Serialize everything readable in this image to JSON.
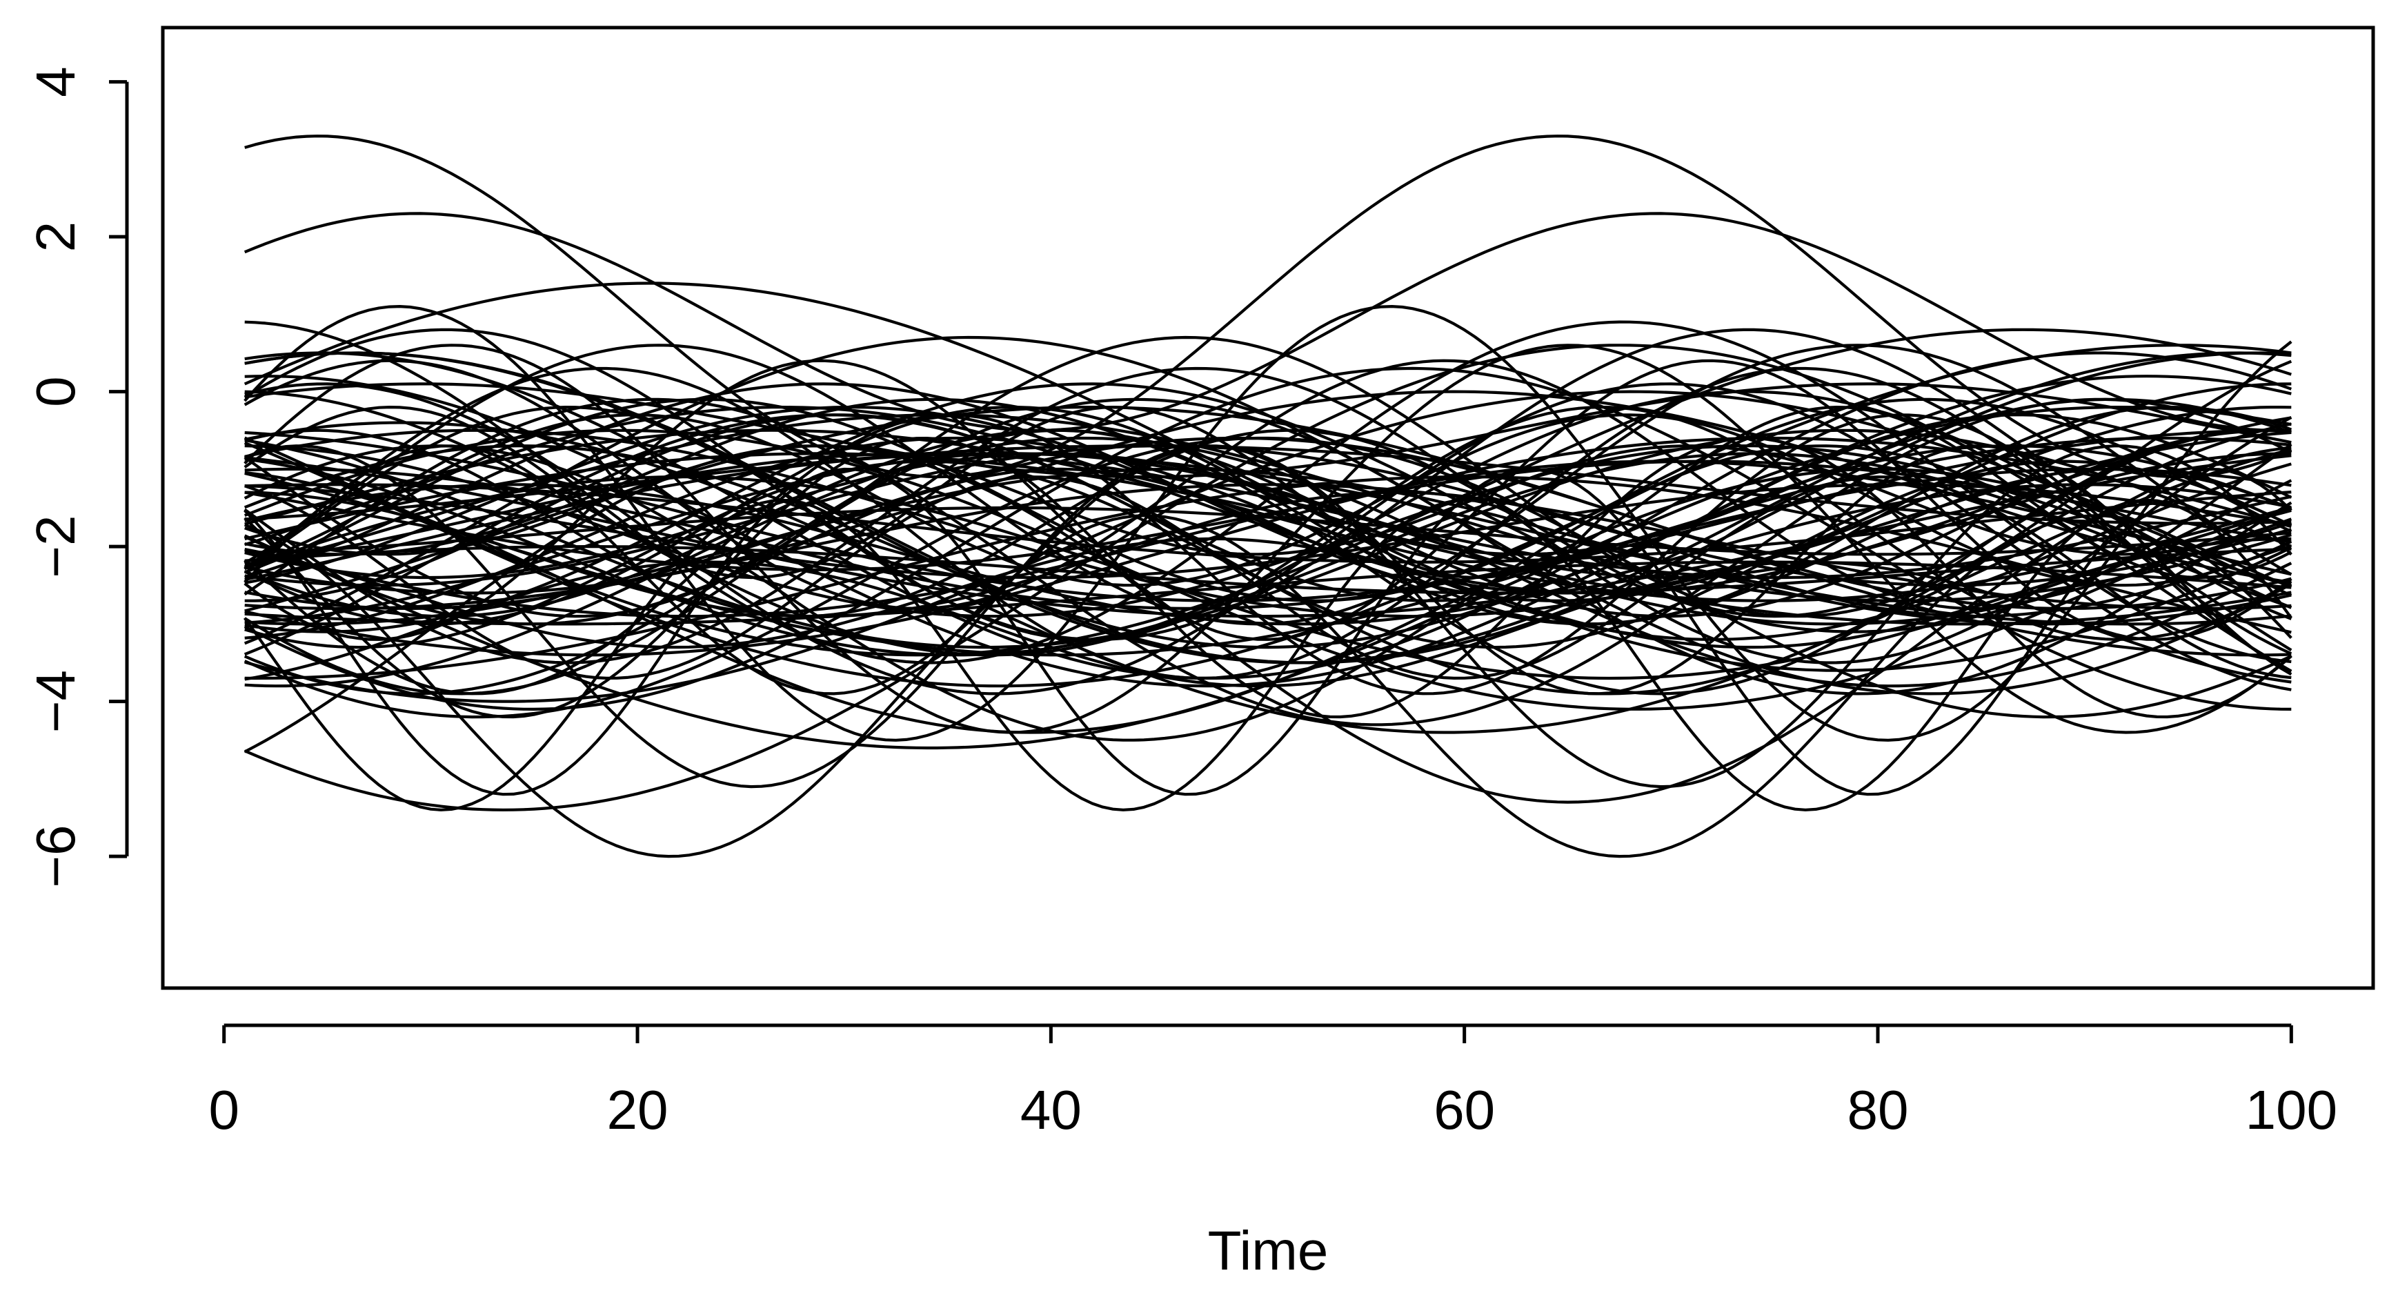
{
  "chart_data": {
    "type": "line",
    "title": "",
    "xlabel": "Time",
    "ylabel": "",
    "x_range": [
      1,
      100
    ],
    "xlim": [
      -2.96,
      103.96
    ],
    "ylim": [
      -7.7,
      4.7
    ],
    "x_ticks": [
      0,
      20,
      40,
      60,
      80,
      100
    ],
    "x_tick_labels": [
      "0",
      "20",
      "40",
      "60",
      "80",
      "100"
    ],
    "y_ticks": [
      -6,
      -4,
      -2,
      0,
      2,
      4
    ],
    "y_tick_labels": [
      "−6",
      "−4",
      "−2",
      "0",
      "2",
      "4"
    ],
    "grid": false,
    "legend": "none",
    "line_color": "#000000",
    "series_count": 100,
    "series_formula": "y(t) = offset + amplitude * sin(2*pi*(t - 1)/period + phase), t = 1..100",
    "series": [
      {
        "offset": -1.7,
        "amplitude": 2.8,
        "period": 48,
        "phase": 0.6
      },
      {
        "offset": -1.7,
        "amplitude": 2.0,
        "period": 58,
        "phase": -0.3
      },
      {
        "offset": -1.3,
        "amplitude": 1.4,
        "period": 71,
        "phase": -0.9
      },
      {
        "offset": -1.9,
        "amplitude": 1.1,
        "period": 79,
        "phase": -1.4
      },
      {
        "offset": -3.4,
        "amplitude": 2.0,
        "period": 33,
        "phase": 2.9
      },
      {
        "offset": -1.6,
        "amplitude": 0.9,
        "period": 76,
        "phase": -2.1
      },
      {
        "offset": -1.1,
        "amplitude": 1.0,
        "period": 57,
        "phase": -2.1
      },
      {
        "offset": -1.3,
        "amplitude": 1.3,
        "period": 95,
        "phase": -2.3
      },
      {
        "offset": -2.4,
        "amplitude": 2.0,
        "period": 101,
        "phase": 1.1
      },
      {
        "offset": -1.8,
        "amplitude": 0.3,
        "period": 84,
        "phase": -1.2
      },
      {
        "offset": -1.6,
        "amplitude": 1.1,
        "period": 102,
        "phase": 1.8
      },
      {
        "offset": -2.6,
        "amplitude": 0.4,
        "period": 116,
        "phase": -2.4
      },
      {
        "offset": -1.6,
        "amplitude": 1.9,
        "period": 61,
        "phase": 3.1
      },
      {
        "offset": -1.8,
        "amplitude": 2.0,
        "period": 91,
        "phase": 1.5
      },
      {
        "offset": -2.4,
        "amplitude": 3.0,
        "period": 108,
        "phase": -2.3
      },
      {
        "offset": -1.2,
        "amplitude": 1.8,
        "period": 58,
        "phase": -0.6
      },
      {
        "offset": -1.3,
        "amplitude": 1.1,
        "period": 35,
        "phase": 0.3
      },
      {
        "offset": -1.6,
        "amplitude": 1.4,
        "period": 56,
        "phase": -2.6
      },
      {
        "offset": -1.7,
        "amplitude": 1.1,
        "period": 80,
        "phase": -2.2
      },
      {
        "offset": -1.5,
        "amplitude": 1.2,
        "period": 57,
        "phase": -1.6
      },
      {
        "offset": -3.0,
        "amplitude": 0.8,
        "period": 53,
        "phase": -1.1
      },
      {
        "offset": -1.7,
        "amplitude": 0.5,
        "period": 105,
        "phase": 1.3
      },
      {
        "offset": -3.1,
        "amplitude": 2.1,
        "period": 33,
        "phase": 2.3
      },
      {
        "offset": -2.2,
        "amplitude": 1.7,
        "period": 58,
        "phase": -2.7
      },
      {
        "offset": -1.9,
        "amplitude": 1.0,
        "period": 94,
        "phase": -3.0
      },
      {
        "offset": -1.5,
        "amplitude": 2.0,
        "period": 91,
        "phase": 1.2
      },
      {
        "offset": -1.6,
        "amplitude": 0.7,
        "period": 86,
        "phase": 2.7
      },
      {
        "offset": -1.9,
        "amplitude": 1.1,
        "period": 110,
        "phase": -0.5
      },
      {
        "offset": -1.9,
        "amplitude": 2.0,
        "period": 65,
        "phase": 1.2
      },
      {
        "offset": -2.4,
        "amplitude": 1.3,
        "period": 41,
        "phase": 2.0
      },
      {
        "offset": -2.4,
        "amplitude": 1.8,
        "period": 40,
        "phase": 2.7
      },
      {
        "offset": -1.7,
        "amplitude": 1.7,
        "period": 73,
        "phase": 1.6
      },
      {
        "offset": -2.3,
        "amplitude": 1.8,
        "period": 98,
        "phase": 0.4
      },
      {
        "offset": -3.0,
        "amplitude": 2.3,
        "period": 73,
        "phase": -0.8
      },
      {
        "offset": -1.6,
        "amplitude": 0.8,
        "period": 83,
        "phase": -0.9
      },
      {
        "offset": -1.1,
        "amplitude": 2.5,
        "period": 115,
        "phase": 0.5
      },
      {
        "offset": -1.6,
        "amplitude": 1.1,
        "period": 96,
        "phase": -0.1
      },
      {
        "offset": -2.3,
        "amplitude": 1.6,
        "period": 37,
        "phase": -0.1
      },
      {
        "offset": -1.3,
        "amplitude": 2.2,
        "period": 67,
        "phase": 1.6
      },
      {
        "offset": -1.9,
        "amplitude": 1.3,
        "period": 73,
        "phase": -1.4
      },
      {
        "offset": -2.0,
        "amplitude": 1.4,
        "period": 114,
        "phase": -2.5
      },
      {
        "offset": -1.1,
        "amplitude": 1.8,
        "period": 59,
        "phase": 3.0
      },
      {
        "offset": -2.2,
        "amplitude": 1.6,
        "period": 78,
        "phase": -1.7
      },
      {
        "offset": -1.9,
        "amplitude": 0.9,
        "period": 87,
        "phase": 1.4
      },
      {
        "offset": -1.9,
        "amplitude": 1.1,
        "period": 111,
        "phase": 0.0
      },
      {
        "offset": -1.5,
        "amplitude": 1.2,
        "period": 93,
        "phase": -0.7
      },
      {
        "offset": -2.6,
        "amplitude": 0.7,
        "period": 52,
        "phase": 2.2
      },
      {
        "offset": -1.2,
        "amplitude": 2.0,
        "period": 63,
        "phase": 0.6
      },
      {
        "offset": -1.3,
        "amplitude": 2.1,
        "period": 107,
        "phase": 2.8
      },
      {
        "offset": -1.4,
        "amplitude": 0.7,
        "period": 42,
        "phase": -2.6
      },
      {
        "offset": -1.2,
        "amplitude": 0.5,
        "period": 102,
        "phase": -1.1
      },
      {
        "offset": -2.0,
        "amplitude": 1.4,
        "period": 107,
        "phase": 2.4
      },
      {
        "offset": -1.9,
        "amplitude": 2.2,
        "period": 85,
        "phase": -2.6
      },
      {
        "offset": -2.7,
        "amplitude": 1.7,
        "period": 82,
        "phase": 1.8
      },
      {
        "offset": -1.6,
        "amplitude": 2.2,
        "period": 114,
        "phase": 2.7
      },
      {
        "offset": -1.9,
        "amplitude": 2.5,
        "period": 54,
        "phase": 0.4
      },
      {
        "offset": -1.4,
        "amplitude": 1.2,
        "period": 79,
        "phase": -0.5
      },
      {
        "offset": -2.0,
        "amplitude": 2.0,
        "period": 109,
        "phase": -2.3
      },
      {
        "offset": -1.8,
        "amplitude": 1.1,
        "period": 118,
        "phase": 2.1
      },
      {
        "offset": -1.4,
        "amplitude": 1.1,
        "period": 48,
        "phase": -0.9
      },
      {
        "offset": -1.2,
        "amplitude": 1.6,
        "period": 51,
        "phase": 0.7
      },
      {
        "offset": -2.4,
        "amplitude": 1.3,
        "period": 117,
        "phase": -1.6
      },
      {
        "offset": -1.7,
        "amplitude": 1.5,
        "period": 50,
        "phase": -0.4
      },
      {
        "offset": -2.1,
        "amplitude": 1.8,
        "period": 46,
        "phase": -3.1
      },
      {
        "offset": -1.5,
        "amplitude": 2.0,
        "period": 92,
        "phase": 1.2
      },
      {
        "offset": -1.9,
        "amplitude": 1.4,
        "period": 83,
        "phase": 2.0
      },
      {
        "offset": -1.4,
        "amplitude": 1.2,
        "period": 69,
        "phase": -1.1
      },
      {
        "offset": -2.0,
        "amplitude": 1.3,
        "period": 72,
        "phase": 0.4
      },
      {
        "offset": -2.3,
        "amplitude": 0.3,
        "period": 89,
        "phase": 0.4
      },
      {
        "offset": -1.8,
        "amplitude": 1.1,
        "period": 73,
        "phase": 1.6
      },
      {
        "offset": -2.0,
        "amplitude": 1.9,
        "period": 70,
        "phase": -2.3
      },
      {
        "offset": -2.0,
        "amplitude": 0.8,
        "period": 90,
        "phase": -1.9
      },
      {
        "offset": -1.6,
        "amplitude": 2.3,
        "period": 93,
        "phase": -0.8
      },
      {
        "offset": -2.4,
        "amplitude": 1.3,
        "period": 90,
        "phase": 0.1
      },
      {
        "offset": -2.4,
        "amplitude": 2.2,
        "period": 115,
        "phase": 2.9
      },
      {
        "offset": -2.6,
        "amplitude": 1.9,
        "period": 67,
        "phase": 0.7
      },
      {
        "offset": -2.4,
        "amplitude": 1.8,
        "period": 76,
        "phase": -2.5
      },
      {
        "offset": -1.4,
        "amplitude": 1.8,
        "period": 43,
        "phase": -2.5
      },
      {
        "offset": -2.2,
        "amplitude": 2.1,
        "period": 70,
        "phase": -0.2
      },
      {
        "offset": -1.7,
        "amplitude": 1.2,
        "period": 91,
        "phase": 0.8
      },
      {
        "offset": -1.6,
        "amplitude": 0.8,
        "period": 60,
        "phase": -2.5
      },
      {
        "offset": -1.8,
        "amplitude": 1.6,
        "period": 113,
        "phase": -0.7
      },
      {
        "offset": -1.6,
        "amplitude": 2.1,
        "period": 86,
        "phase": 1.3
      },
      {
        "offset": -2.1,
        "amplitude": 1.3,
        "period": 77,
        "phase": 1.9
      },
      {
        "offset": -1.7,
        "amplitude": 1.2,
        "period": 59,
        "phase": -2.6
      },
      {
        "offset": -2.0,
        "amplitude": 1.0,
        "period": 84,
        "phase": -1.8
      },
      {
        "offset": -1.7,
        "amplitude": 1.2,
        "period": 47,
        "phase": 1.1
      },
      {
        "offset": -1.4,
        "amplitude": 1.3,
        "period": 59,
        "phase": -0.8
      },
      {
        "offset": -2.1,
        "amplitude": 0.8,
        "period": 56,
        "phase": 1.6
      },
      {
        "offset": -1.8,
        "amplitude": 0.6,
        "period": 83,
        "phase": 1.8
      },
      {
        "offset": -2.1,
        "amplitude": 1.2,
        "period": 55,
        "phase": -2.2
      },
      {
        "offset": -1.5,
        "amplitude": 1.6,
        "period": 74,
        "phase": -1.9
      },
      {
        "offset": -2.1,
        "amplitude": 0.9,
        "period": 76,
        "phase": 0.5
      },
      {
        "offset": -2.1,
        "amplitude": 1.8,
        "period": 75,
        "phase": -0.8
      },
      {
        "offset": -0.5,
        "amplitude": 0.6,
        "period": 70,
        "phase": 0.8
      },
      {
        "offset": -2.0,
        "amplitude": 1.0,
        "period": 51,
        "phase": 3.0
      },
      {
        "offset": 1.1,
        "amplitude": 2.2,
        "period": 60,
        "phase": 1.2
      },
      {
        "offset": 0.9,
        "amplitude": 1.4,
        "period": 60,
        "phase": 0.7
      },
      {
        "offset": -3.8,
        "amplitude": 2.2,
        "period": 46,
        "phase": 1.9
      },
      {
        "offset": -2.9,
        "amplitude": 2.2,
        "period": 44,
        "phase": 1.2
      }
    ]
  }
}
